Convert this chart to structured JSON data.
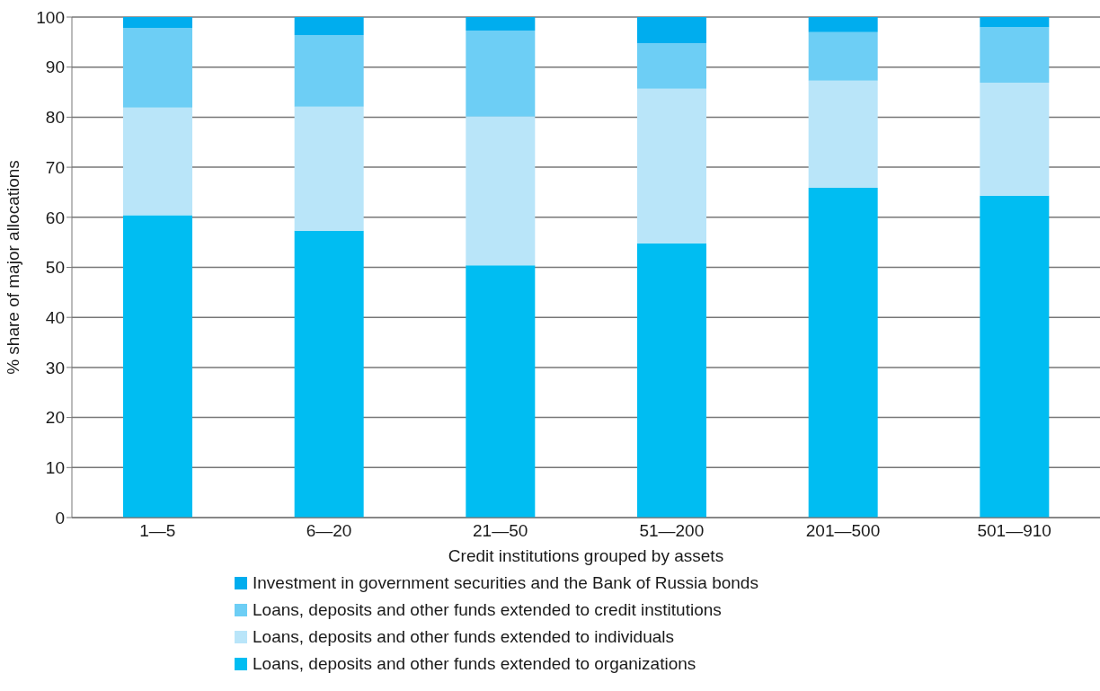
{
  "chart_data": {
    "type": "bar",
    "stacked": true,
    "xlabel": "Credit institutions grouped by assets",
    "ylabel": "% share of major allocations",
    "categories": [
      "1—5",
      "6—20",
      "21—50",
      "51—200",
      "201—500",
      "501—910"
    ],
    "series": [
      {
        "name": "Loans, deposits and other funds extended to organizations",
        "color": "#00bdf2",
        "values": [
          60.4,
          57.3,
          50.4,
          54.8,
          65.9,
          64.3
        ]
      },
      {
        "name": "Loans, deposits and other funds extended to individuals",
        "color": "#b9e5f9",
        "values": [
          21.5,
          24.8,
          29.7,
          30.9,
          21.4,
          22.6
        ]
      },
      {
        "name": "Loans, deposits and other funds extended to credit institutions",
        "color": "#6dcef5",
        "values": [
          15.9,
          14.3,
          17.2,
          9.1,
          9.7,
          11.1
        ]
      },
      {
        "name": "Investment in government securities and the Bank of Russia bonds",
        "color": "#00adee",
        "values": [
          2.2,
          3.6,
          2.7,
          5.2,
          3.0,
          2.0
        ]
      }
    ],
    "ylim": [
      0,
      100
    ],
    "yticks": [
      0,
      10,
      20,
      30,
      40,
      50,
      60,
      70,
      80,
      90,
      100
    ],
    "grid": "y",
    "legend": "bottom"
  }
}
